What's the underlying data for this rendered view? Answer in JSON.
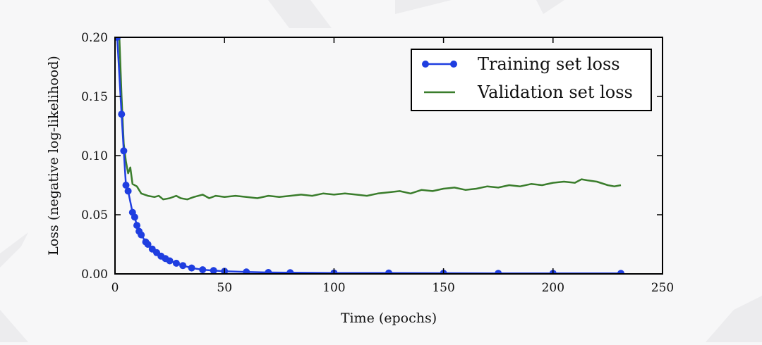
{
  "chart_data": {
    "type": "line",
    "title": "",
    "xlabel": "Time (epochs)",
    "ylabel": "Loss (negative log-likelihood)",
    "xlim": [
      0,
      250
    ],
    "ylim": [
      0.0,
      0.2
    ],
    "x_ticks": [
      "0",
      "50",
      "100",
      "150",
      "200",
      "250"
    ],
    "y_ticks": [
      "0.00",
      "0.05",
      "0.10",
      "0.15",
      "0.20"
    ],
    "grid": false,
    "legend_position": "top-right",
    "series": [
      {
        "name": "Training set loss",
        "color": "#1f3ee0",
        "marker": "circle",
        "points": [
          [
            1,
            0.2
          ],
          [
            3,
            0.135
          ],
          [
            4,
            0.104
          ],
          [
            5,
            0.075
          ],
          [
            6,
            0.07
          ],
          [
            8,
            0.052
          ],
          [
            9,
            0.048
          ],
          [
            10,
            0.041
          ],
          [
            11,
            0.036
          ],
          [
            12,
            0.033
          ],
          [
            14,
            0.027
          ],
          [
            15,
            0.025
          ],
          [
            17,
            0.021
          ],
          [
            19,
            0.018
          ],
          [
            21,
            0.015
          ],
          [
            23,
            0.013
          ],
          [
            25,
            0.011
          ],
          [
            28,
            0.009
          ],
          [
            31,
            0.007
          ],
          [
            35,
            0.005
          ],
          [
            40,
            0.0035
          ],
          [
            45,
            0.0028
          ],
          [
            50,
            0.0022
          ],
          [
            60,
            0.0016
          ],
          [
            70,
            0.0012
          ],
          [
            80,
            0.001
          ],
          [
            100,
            0.0008
          ],
          [
            125,
            0.0007
          ],
          [
            150,
            0.0006
          ],
          [
            175,
            0.0005
          ],
          [
            200,
            0.0005
          ],
          [
            231,
            0.0004
          ]
        ]
      },
      {
        "name": "Validation set loss",
        "color": "#3a7d2c",
        "marker": "none",
        "points": [
          [
            2,
            0.2
          ],
          [
            3,
            0.15
          ],
          [
            4,
            0.11
          ],
          [
            5,
            0.095
          ],
          [
            6,
            0.085
          ],
          [
            7,
            0.09
          ],
          [
            8,
            0.076
          ],
          [
            10,
            0.074
          ],
          [
            12,
            0.068
          ],
          [
            15,
            0.066
          ],
          [
            18,
            0.065
          ],
          [
            20,
            0.066
          ],
          [
            22,
            0.063
          ],
          [
            25,
            0.064
          ],
          [
            28,
            0.066
          ],
          [
            30,
            0.064
          ],
          [
            33,
            0.063
          ],
          [
            36,
            0.065
          ],
          [
            40,
            0.067
          ],
          [
            43,
            0.064
          ],
          [
            46,
            0.066
          ],
          [
            50,
            0.065
          ],
          [
            55,
            0.066
          ],
          [
            60,
            0.065
          ],
          [
            65,
            0.064
          ],
          [
            70,
            0.066
          ],
          [
            75,
            0.065
          ],
          [
            80,
            0.066
          ],
          [
            85,
            0.067
          ],
          [
            90,
            0.066
          ],
          [
            95,
            0.068
          ],
          [
            100,
            0.067
          ],
          [
            105,
            0.068
          ],
          [
            110,
            0.067
          ],
          [
            115,
            0.066
          ],
          [
            120,
            0.068
          ],
          [
            125,
            0.069
          ],
          [
            130,
            0.07
          ],
          [
            135,
            0.068
          ],
          [
            140,
            0.071
          ],
          [
            145,
            0.07
          ],
          [
            150,
            0.072
          ],
          [
            155,
            0.073
          ],
          [
            160,
            0.071
          ],
          [
            165,
            0.072
          ],
          [
            170,
            0.074
          ],
          [
            175,
            0.073
          ],
          [
            180,
            0.075
          ],
          [
            185,
            0.074
          ],
          [
            190,
            0.076
          ],
          [
            195,
            0.075
          ],
          [
            200,
            0.077
          ],
          [
            205,
            0.078
          ],
          [
            210,
            0.077
          ],
          [
            213,
            0.08
          ],
          [
            216,
            0.079
          ],
          [
            220,
            0.078
          ],
          [
            225,
            0.075
          ],
          [
            228,
            0.074
          ],
          [
            231,
            0.075
          ]
        ]
      }
    ]
  }
}
